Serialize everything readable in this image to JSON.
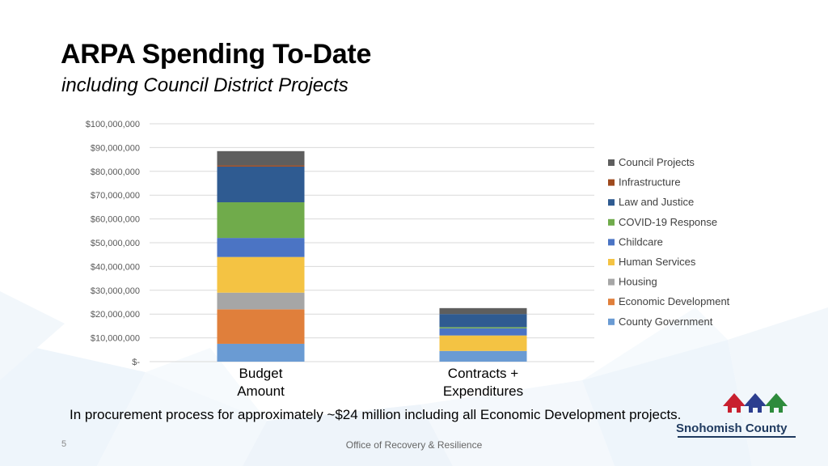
{
  "slide": {
    "title": "ARPA Spending To-Date",
    "subtitle": "including Council District Projects",
    "note": "In procurement process for approximately ~$24 million including all Economic Development projects.",
    "slide_number": "5",
    "footer": "Office of Recovery & Resilience",
    "logo_text": "Snohomish County"
  },
  "chart_data": {
    "type": "bar",
    "stacked": true,
    "categories": [
      "Budget\nAmount",
      "Contracts +\nExpenditures"
    ],
    "ylim": [
      0,
      100000000
    ],
    "y_ticks": [
      "$-",
      "$10,000,000",
      "$20,000,000",
      "$30,000,000",
      "$40,000,000",
      "$50,000,000",
      "$60,000,000",
      "$70,000,000",
      "$80,000,000",
      "$90,000,000",
      "$100,000,000"
    ],
    "grid": true,
    "legend_position": "right",
    "series": [
      {
        "name": "County Government",
        "color": "#6a9bd3",
        "values": [
          7500000,
          4500000
        ]
      },
      {
        "name": "Economic Development",
        "color": "#e07f3b",
        "values": [
          14500000,
          0
        ]
      },
      {
        "name": "Housing",
        "color": "#a6a6a6",
        "values": [
          7000000,
          0
        ]
      },
      {
        "name": "Human Services",
        "color": "#f4c343",
        "values": [
          15000000,
          6500000
        ]
      },
      {
        "name": "Childcare",
        "color": "#4b74c4",
        "values": [
          8000000,
          3000000
        ]
      },
      {
        "name": "COVID-19 Response",
        "color": "#70ab4b",
        "values": [
          15000000,
          500000
        ]
      },
      {
        "name": "Law and Justice",
        "color": "#2f5b91",
        "values": [
          15000000,
          5500000
        ]
      },
      {
        "name": "Infrastructure",
        "color": "#9e4a1e",
        "values": [
          500000,
          0
        ]
      },
      {
        "name": "Council Projects",
        "color": "#5e5e5e",
        "values": [
          6000000,
          2500000
        ]
      }
    ]
  }
}
